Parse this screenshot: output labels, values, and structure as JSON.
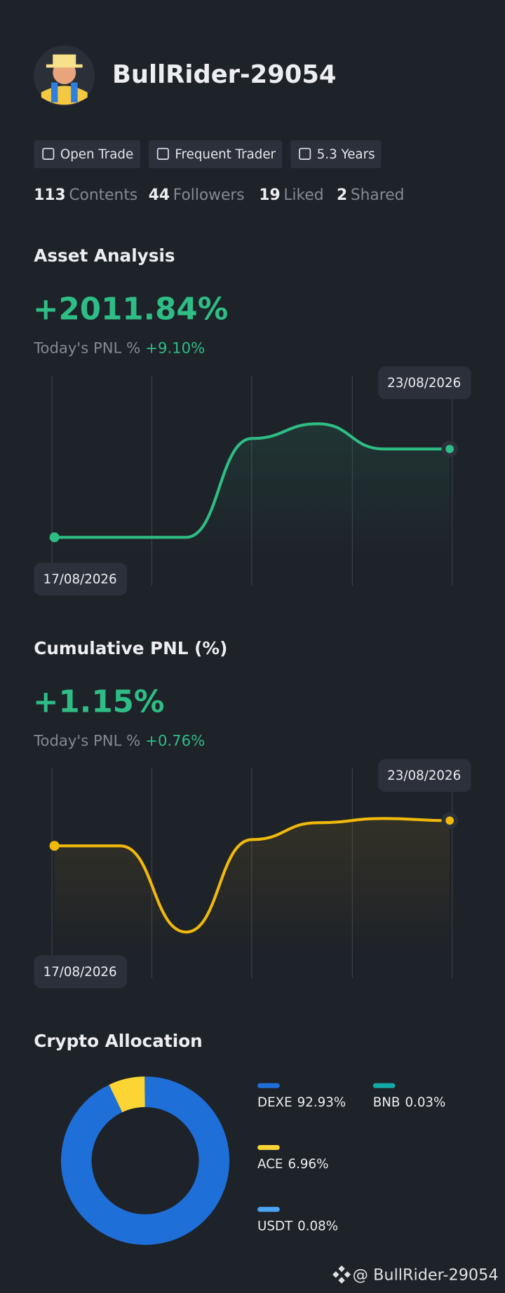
{
  "profile": {
    "name": "BullRider-29054",
    "badges": [
      "Open Trade",
      "Frequent Trader",
      "5.3 Years"
    ],
    "stats": [
      {
        "count": 113,
        "label": "Contents"
      },
      {
        "count": 44,
        "label": "Followers"
      },
      {
        "count": 19,
        "label": "Liked"
      },
      {
        "count": 2,
        "label": "Shared"
      }
    ]
  },
  "charts": [
    {
      "type": "line",
      "title": "Asset Analysis",
      "headline": "+2011.84%",
      "today_label": "Today's PNL %",
      "today_value": "+9.10%",
      "x": [
        "17/08/2026",
        null,
        null,
        null,
        null,
        null,
        "23/08/2026"
      ],
      "values": [
        23,
        23,
        23,
        70,
        77,
        65,
        65
      ],
      "ylim": [
        0,
        100
      ],
      "color": "#2ebd85"
    },
    {
      "type": "line",
      "title": "Cumulative PNL (%)",
      "headline": "+1.15%",
      "today_label": "Today's PNL %",
      "today_value": "+0.76%",
      "x": [
        "17/08/2026",
        null,
        null,
        null,
        null,
        null,
        "23/08/2026"
      ],
      "values": [
        63,
        63,
        22,
        66,
        74,
        76,
        75
      ],
      "ylim": [
        0,
        100
      ],
      "color": "#f0b90b"
    }
  ],
  "allocation": {
    "type": "pie",
    "title": "Crypto Allocation",
    "categories": [
      "DEXE",
      "ACE",
      "USDT",
      "BNB"
    ],
    "values": [
      92.93,
      6.96,
      0.08,
      0.03
    ],
    "value_labels": [
      "92.93%",
      "6.96%",
      "0.08%",
      "0.03%"
    ],
    "colors": [
      "#1f6fd9",
      "#fcd535",
      "#4ca3f2",
      "#14a9a9"
    ]
  },
  "footer": "@ BullRider-29054"
}
